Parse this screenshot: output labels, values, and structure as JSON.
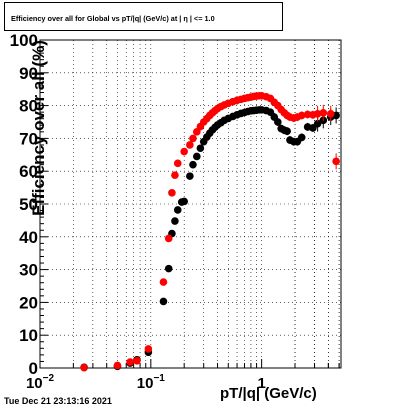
{
  "footer": {
    "timestamp": "Tue Dec 21 23:13:16 2021"
  },
  "chart_data": {
    "type": "scatter",
    "title": "Efficiency over all for Global vs pT/|q| (GeV/c) at | η | <= 1.0",
    "xlabel": "pT/|q| (GeV/c)",
    "ylabel": "Efficiency over all (%)",
    "xscale": "log",
    "xlim": [
      0.01,
      5.2
    ],
    "ylim": [
      0,
      100
    ],
    "grid": true,
    "y_ticks": [
      "0",
      "10",
      "20",
      "30",
      "40",
      "50",
      "60",
      "70",
      "80",
      "90",
      "100"
    ],
    "x_ticks": [
      {
        "value": 0.01,
        "label": "10",
        "sup": "−2"
      },
      {
        "value": 0.1,
        "label": "10",
        "sup": "−1"
      },
      {
        "value": 1,
        "label": "1",
        "sup": ""
      }
    ],
    "series": [
      {
        "color": "#000000",
        "points": [
          [
            0.025,
            0.2
          ],
          [
            0.05,
            0.5
          ],
          [
            0.065,
            1.5
          ],
          [
            0.075,
            2.5
          ],
          [
            0.095,
            4.8
          ],
          [
            0.13,
            20.3
          ],
          [
            0.145,
            30.3
          ],
          [
            0.155,
            41.0
          ],
          [
            0.165,
            44.8
          ],
          [
            0.175,
            48.2
          ],
          [
            0.19,
            50.6
          ],
          [
            0.2,
            50.8
          ],
          [
            0.225,
            58.5
          ],
          [
            0.24,
            62.0
          ],
          [
            0.26,
            64.5
          ],
          [
            0.28,
            67.0
          ],
          [
            0.3,
            69.0
          ],
          [
            0.32,
            70.4
          ],
          [
            0.34,
            71.6
          ],
          [
            0.36,
            72.6
          ],
          [
            0.38,
            73.4
          ],
          [
            0.4,
            74.1
          ],
          [
            0.43,
            74.8
          ],
          [
            0.46,
            75.5
          ],
          [
            0.5,
            76.1
          ],
          [
            0.55,
            76.7
          ],
          [
            0.6,
            77.2
          ],
          [
            0.65,
            77.6
          ],
          [
            0.7,
            77.9
          ],
          [
            0.75,
            78.2
          ],
          [
            0.8,
            78.4
          ],
          [
            0.85,
            78.5
          ],
          [
            0.9,
            78.6
          ],
          [
            0.95,
            78.7
          ],
          [
            1.0,
            78.7
          ],
          [
            1.1,
            78.5
          ],
          [
            1.2,
            78.0
          ],
          [
            1.3,
            76.5
          ],
          [
            1.4,
            75.0
          ],
          [
            1.5,
            73.0
          ],
          [
            1.6,
            72.5
          ],
          [
            1.7,
            72.2
          ],
          [
            1.8,
            69.5
          ],
          [
            1.95,
            69.0
          ],
          [
            2.1,
            69.0
          ],
          [
            2.3,
            70.3
          ],
          [
            2.6,
            73.5
          ],
          [
            2.9,
            73.2
          ],
          [
            3.2,
            74.5
          ],
          [
            3.6,
            75.5
          ],
          [
            4.2,
            76.5
          ],
          [
            4.7,
            77.0
          ]
        ]
      },
      {
        "color": "#ff0000",
        "points": [
          [
            0.025,
            0.1
          ],
          [
            0.05,
            0.8
          ],
          [
            0.065,
            1.8
          ],
          [
            0.075,
            2.2
          ],
          [
            0.095,
            5.8
          ],
          [
            0.13,
            26.2
          ],
          [
            0.145,
            39.5
          ],
          [
            0.155,
            53.4
          ],
          [
            0.165,
            58.8
          ],
          [
            0.175,
            62.4
          ],
          [
            0.2,
            66.0
          ],
          [
            0.225,
            68.0
          ],
          [
            0.24,
            70.0
          ],
          [
            0.26,
            72.0
          ],
          [
            0.28,
            73.6
          ],
          [
            0.3,
            75.0
          ],
          [
            0.32,
            76.0
          ],
          [
            0.34,
            77.0
          ],
          [
            0.36,
            77.8
          ],
          [
            0.38,
            78.5
          ],
          [
            0.4,
            79.1
          ],
          [
            0.43,
            79.7
          ],
          [
            0.46,
            80.2
          ],
          [
            0.5,
            80.7
          ],
          [
            0.55,
            81.2
          ],
          [
            0.6,
            81.6
          ],
          [
            0.65,
            81.9
          ],
          [
            0.7,
            82.2
          ],
          [
            0.75,
            82.4
          ],
          [
            0.8,
            82.6
          ],
          [
            0.85,
            82.8
          ],
          [
            0.9,
            82.9
          ],
          [
            0.95,
            83.0
          ],
          [
            1.0,
            83.0
          ],
          [
            1.1,
            82.7
          ],
          [
            1.2,
            82.2
          ],
          [
            1.3,
            81.0
          ],
          [
            1.4,
            80.0
          ],
          [
            1.5,
            78.8
          ],
          [
            1.6,
            77.8
          ],
          [
            1.7,
            77.0
          ],
          [
            1.8,
            76.5
          ],
          [
            1.95,
            76.2
          ],
          [
            2.1,
            76.5
          ],
          [
            2.3,
            77.0
          ],
          [
            2.6,
            77.3
          ],
          [
            2.9,
            77.2
          ],
          [
            3.2,
            77.5
          ],
          [
            3.6,
            77.8
          ],
          [
            4.2,
            77.5
          ],
          [
            4.7,
            63.0
          ]
        ]
      }
    ]
  }
}
